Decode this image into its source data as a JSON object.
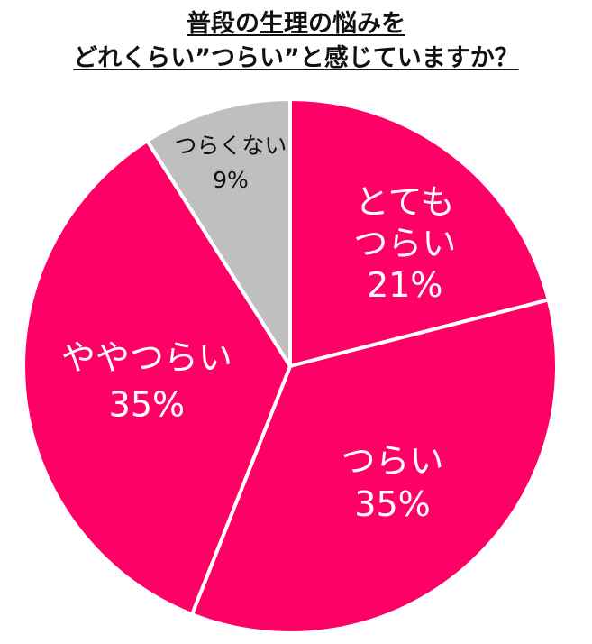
{
  "chart_data": {
    "type": "pie",
    "title_lines": [
      "普段の生理の悩みを",
      "どれくらい”つらい”と感じていますか？"
    ],
    "start_angle_deg": 0,
    "direction": "clockwise",
    "slices": [
      {
        "label_lines": [
          "とても",
          "つらい"
        ],
        "value": 21,
        "value_label": "21%",
        "color": "#ff0066",
        "label_color": "#ffffff"
      },
      {
        "label_lines": [
          "つらい"
        ],
        "value": 35,
        "value_label": "35%",
        "color": "#ff0066",
        "label_color": "#ffffff"
      },
      {
        "label_lines": [
          "ややつらい"
        ],
        "value": 35,
        "value_label": "35%",
        "color": "#ff0066",
        "label_color": "#ffffff"
      },
      {
        "label_lines": [
          "つらくない"
        ],
        "value": 9,
        "value_label": "9%",
        "color": "#bfbfbf",
        "label_color": "#111111"
      }
    ],
    "separator_color": "#ffffff",
    "legend": "none"
  }
}
